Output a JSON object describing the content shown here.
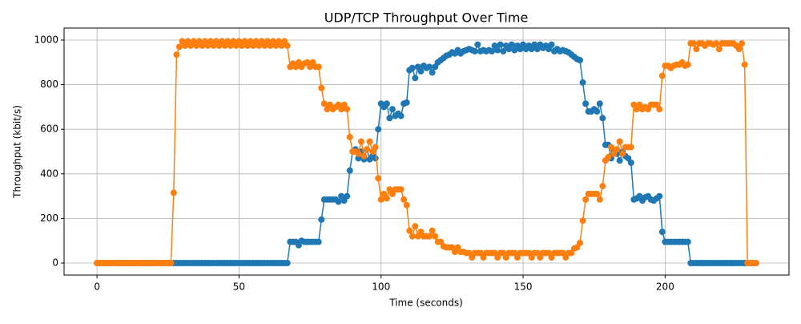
{
  "chart_data": {
    "type": "line",
    "title": "UDP/TCP Throughput Over Time",
    "x_label": "Time (seconds)",
    "y_label": "Throughput (kbit/s)",
    "x": [
      0,
      1,
      2,
      3,
      4,
      5,
      6,
      7,
      8,
      9,
      10,
      11,
      12,
      13,
      14,
      15,
      16,
      17,
      18,
      19,
      20,
      21,
      22,
      23,
      24,
      25,
      26,
      27,
      28,
      29,
      30,
      31,
      32,
      33,
      34,
      35,
      36,
      37,
      38,
      39,
      40,
      41,
      42,
      43,
      44,
      45,
      46,
      47,
      48,
      49,
      50,
      51,
      52,
      53,
      54,
      55,
      56,
      57,
      58,
      59,
      60,
      61,
      62,
      63,
      64,
      65,
      66,
      67,
      68,
      69,
      70,
      71,
      72,
      73,
      74,
      75,
      76,
      77,
      78,
      79,
      80,
      81,
      82,
      83,
      84,
      85,
      86,
      87,
      88,
      89,
      90,
      91,
      92,
      93,
      94,
      95,
      96,
      97,
      98,
      99,
      100,
      101,
      102,
      103,
      104,
      105,
      106,
      107,
      108,
      109,
      110,
      111,
      112,
      113,
      114,
      115,
      116,
      117,
      118,
      119,
      120,
      121,
      122,
      123,
      124,
      125,
      126,
      127,
      128,
      129,
      130,
      131,
      132,
      133,
      134,
      135,
      136,
      137,
      138,
      139,
      140,
      141,
      142,
      143,
      144,
      145,
      146,
      147,
      148,
      149,
      150,
      151,
      152,
      153,
      154,
      155,
      156,
      157,
      158,
      159,
      160,
      161,
      162,
      163,
      164,
      165,
      166,
      167,
      168,
      169,
      170,
      171,
      172,
      173,
      174,
      175,
      176,
      177,
      178,
      179,
      180,
      181,
      182,
      183,
      184,
      185,
      186,
      187,
      188,
      189,
      190,
      191,
      192,
      193,
      194,
      195,
      196,
      197,
      198,
      199,
      200,
      201,
      202,
      203,
      204,
      205,
      206,
      207,
      208,
      209,
      210,
      211,
      212,
      213,
      214,
      215,
      216,
      217,
      218,
      219,
      220,
      221,
      222,
      223,
      224,
      225,
      226,
      227,
      228,
      229,
      230,
      231,
      232
    ],
    "series": [
      {
        "color": "#1f77b4",
        "values": [
          0,
          0,
          0,
          0,
          0,
          0,
          0,
          0,
          0,
          0,
          0,
          0,
          0,
          0,
          0,
          0,
          0,
          0,
          0,
          0,
          0,
          0,
          0,
          0,
          0,
          0,
          0,
          0,
          0,
          0,
          0,
          0,
          0,
          0,
          0,
          0,
          0,
          0,
          0,
          0,
          0,
          0,
          0,
          0,
          0,
          0,
          0,
          0,
          0,
          0,
          0,
          0,
          0,
          0,
          0,
          0,
          0,
          0,
          0,
          0,
          0,
          0,
          0,
          0,
          0,
          0,
          0,
          0,
          95,
          95,
          95,
          80,
          100,
          95,
          95,
          95,
          95,
          95,
          95,
          195,
          285,
          285,
          285,
          285,
          285,
          275,
          300,
          280,
          300,
          415,
          500,
          510,
          470,
          500,
          465,
          510,
          465,
          480,
          470,
          600,
          715,
          700,
          715,
          650,
          690,
          660,
          670,
          660,
          715,
          720,
          865,
          875,
          830,
          880,
          860,
          885,
          875,
          880,
          855,
          880,
          900,
          910,
          920,
          930,
          935,
          945,
          940,
          955,
          940,
          950,
          955,
          960,
          955,
          950,
          980,
          950,
          955,
          950,
          955,
          950,
          975,
          955,
          980,
          950,
          975,
          960,
          980,
          955,
          975,
          960,
          980,
          960,
          975,
          960,
          980,
          960,
          980,
          965,
          975,
          960,
          980,
          950,
          960,
          950,
          955,
          950,
          945,
          935,
          925,
          915,
          910,
          810,
          715,
          680,
          680,
          690,
          680,
          715,
          650,
          530,
          530,
          470,
          500,
          490,
          460,
          500,
          480,
          470,
          450,
          285,
          290,
          300,
          280,
          295,
          300,
          285,
          280,
          290,
          300,
          140,
          95,
          95,
          95,
          95,
          95,
          95,
          95,
          95,
          95,
          0,
          0,
          0,
          0,
          0,
          0,
          0,
          0,
          0,
          0,
          0,
          0,
          0,
          0,
          0,
          0,
          0,
          0,
          0,
          0,
          0,
          0,
          0,
          0
        ]
      },
      {
        "color": "#ff7f0e",
        "values": [
          0,
          0,
          0,
          0,
          0,
          0,
          0,
          0,
          0,
          0,
          0,
          0,
          0,
          0,
          0,
          0,
          0,
          0,
          0,
          0,
          0,
          0,
          0,
          0,
          0,
          0,
          0,
          315,
          935,
          970,
          995,
          975,
          995,
          975,
          995,
          975,
          995,
          975,
          995,
          975,
          995,
          975,
          995,
          975,
          995,
          975,
          995,
          975,
          995,
          975,
          995,
          975,
          995,
          975,
          995,
          975,
          995,
          975,
          995,
          975,
          995,
          975,
          995,
          975,
          995,
          975,
          995,
          975,
          880,
          895,
          880,
          900,
          880,
          895,
          900,
          880,
          900,
          880,
          880,
          785,
          715,
          690,
          710,
          690,
          700,
          710,
          690,
          710,
          690,
          565,
          500,
          500,
          490,
          545,
          480,
          510,
          545,
          500,
          520,
          380,
          285,
          310,
          290,
          330,
          310,
          330,
          330,
          330,
          285,
          260,
          145,
          120,
          165,
          120,
          140,
          120,
          120,
          120,
          145,
          120,
          95,
          95,
          75,
          70,
          70,
          70,
          50,
          70,
          50,
          50,
          45,
          45,
          25,
          45,
          45,
          45,
          25,
          45,
          45,
          45,
          45,
          25,
          45,
          45,
          25,
          45,
          45,
          45,
          25,
          45,
          45,
          45,
          45,
          25,
          45,
          45,
          25,
          45,
          45,
          45,
          25,
          45,
          45,
          45,
          45,
          25,
          45,
          45,
          65,
          70,
          90,
          190,
          285,
          310,
          310,
          310,
          310,
          285,
          345,
          460,
          475,
          520,
          490,
          510,
          545,
          490,
          520,
          520,
          520,
          710,
          690,
          710,
          690,
          700,
          690,
          710,
          710,
          710,
          690,
          840,
          885,
          885,
          875,
          885,
          890,
          890,
          900,
          885,
          890,
          985,
          985,
          960,
          985,
          985,
          975,
          985,
          985,
          980,
          985,
          960,
          985,
          985,
          985,
          985,
          985,
          975,
          960,
          985,
          890,
          0,
          0,
          0,
          0
        ]
      }
    ],
    "xlim": [
      -11.6,
      243.6
    ],
    "ylim": [
      -54,
      1054
    ],
    "xticks": [
      0,
      50,
      100,
      150,
      200
    ],
    "yticks": [
      0,
      200,
      400,
      600,
      800,
      1000
    ],
    "grid": true
  }
}
